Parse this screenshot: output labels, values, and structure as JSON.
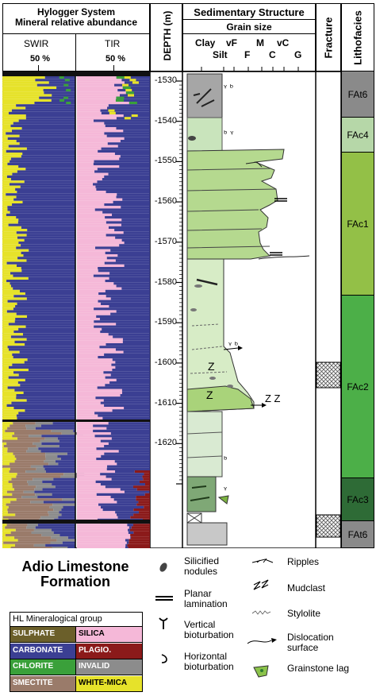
{
  "hylogger": {
    "title_line1": "Hylogger System",
    "title_line2": "Mineral relative abundance",
    "swir": "SWIR",
    "tir": "TIR",
    "swir_pct": "50 %",
    "tir_pct": "50 %"
  },
  "depth": {
    "label": "DEPTH (m)",
    "ticks": [
      "-1530",
      "-1540",
      "-1550",
      "-1560",
      "-1570",
      "-1580",
      "-1590",
      "-1600",
      "-1610",
      "-1620"
    ]
  },
  "sed": {
    "title": "Sedimentary Structure",
    "grain_size": "Grain size",
    "clay": "Clay",
    "silt": "Silt",
    "vf": "vF",
    "f": "F",
    "m": "M",
    "c": "C",
    "vc": "vC",
    "g": "G"
  },
  "fracture": {
    "title": "Fracture"
  },
  "lithofacies": {
    "title": "Lithofacies",
    "units": [
      {
        "label": "FAt6",
        "color": "#8a8a8a"
      },
      {
        "label": "FAc4",
        "color": "#b6d7a8"
      },
      {
        "label": "FAc1",
        "color": "#93c047"
      },
      {
        "label": "FAc2",
        "color": "#4caf48"
      },
      {
        "label": "FAc3",
        "color": "#2e6b36"
      },
      {
        "label": "FAt6",
        "color": "#8a8a8a"
      }
    ]
  },
  "formation": {
    "line1": "Adio Limestone",
    "line2": "Formation"
  },
  "mineral_legend": {
    "title": "HL Mineralogical group",
    "items": [
      {
        "label": "SULPHATE",
        "color": "#6b5f2a",
        "text_color": "#ffffff"
      },
      {
        "label": "SILICA",
        "color": "#f5b8d8",
        "text_color": "#000000"
      },
      {
        "label": "CARBONATE",
        "color": "#3b3f93",
        "text_color": "#ffffff"
      },
      {
        "label": "PLAGIO.",
        "color": "#8b1a1a",
        "text_color": "#ffffff"
      },
      {
        "label": "CHLORITE",
        "color": "#3aa03a",
        "text_color": "#ffffff"
      },
      {
        "label": "INVALID",
        "color": "#8c8c8c",
        "text_color": "#ffffff"
      },
      {
        "label": "SMECTITE",
        "color": "#9a7b6a",
        "text_color": "#ffffff"
      },
      {
        "label": "WHITE-MICA",
        "color": "#e6e22a",
        "text_color": "#000000"
      }
    ]
  },
  "symbols": {
    "silicified": "Silicified nodules",
    "planar": "Planar lamination",
    "vertical": "Vertical bioturbation",
    "horizontal": "Horizontal bioturbation",
    "ripples": "Ripples",
    "mudclast": "Mudclast",
    "stylolite": "Stylolite",
    "dislocation": "Dislocation surface",
    "grainstone": "Grainstone lag"
  }
}
